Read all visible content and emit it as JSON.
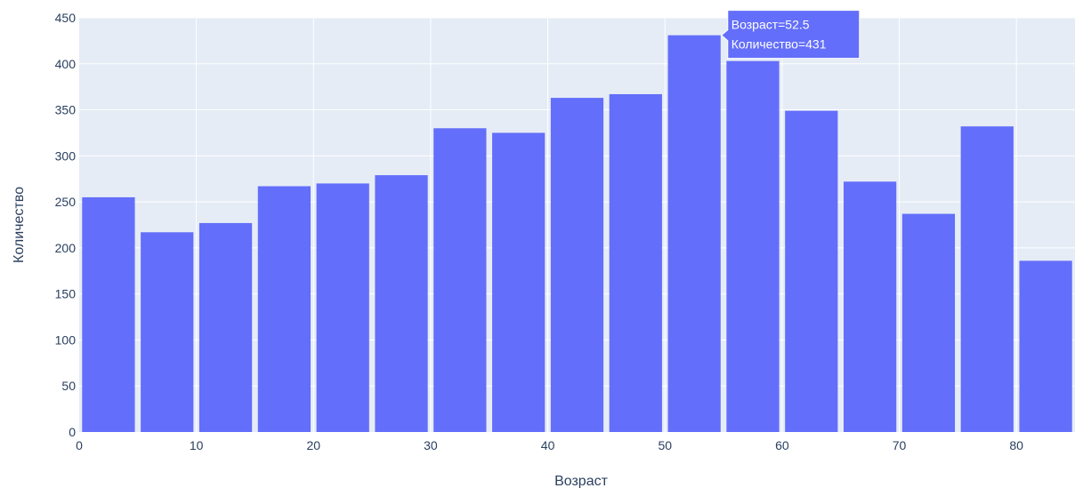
{
  "chart_data": {
    "type": "bar",
    "xlabel": "Возраст",
    "ylabel": "Количество",
    "x": [
      2.5,
      7.5,
      12.5,
      17.5,
      22.5,
      27.5,
      32.5,
      37.5,
      42.5,
      47.5,
      52.5,
      57.5,
      62.5,
      67.5,
      72.5,
      77.5,
      82.5
    ],
    "values": [
      255,
      217,
      227,
      267,
      270,
      279,
      330,
      325,
      363,
      367,
      431,
      403,
      349,
      272,
      237,
      332,
      186
    ],
    "bin_width": 5,
    "xlim": [
      0,
      85
    ],
    "ylim": [
      0,
      450
    ],
    "xticks": [
      0,
      10,
      20,
      30,
      40,
      50,
      60,
      70,
      80
    ],
    "yticks": [
      0,
      50,
      100,
      150,
      200,
      250,
      300,
      350,
      400,
      450
    ],
    "grid": true,
    "colors": {
      "bar": "#636efa",
      "plot_bg": "#e5ecf6",
      "grid": "#ffffff",
      "text": "#2a3f5f"
    },
    "hover": {
      "line1": "Возраст=52.5",
      "line2": "Количество=431"
    }
  }
}
